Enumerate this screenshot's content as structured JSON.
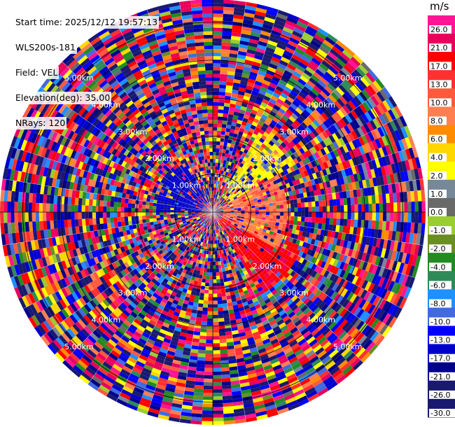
{
  "info": {
    "start_time": "Start time: 2025/12/12 19:57:13",
    "instrument": "WLS200s-181",
    "field": "Field: VEL",
    "elevation": "Elevation(deg): 35.00",
    "nrays": "NRays: 120"
  },
  "colorbar": {
    "unit": "m/s",
    "entries": [
      {
        "label": "26.0",
        "color": "#ff1493"
      },
      {
        "label": "21.0",
        "color": "#e8005c"
      },
      {
        "label": "17.0",
        "color": "#ff0000"
      },
      {
        "label": "13.0",
        "color": "#ff3030"
      },
      {
        "label": "10.0",
        "color": "#ff5a3c"
      },
      {
        "label": "8.0",
        "color": "#ff7f50"
      },
      {
        "label": "6.0",
        "color": "#ff8c00"
      },
      {
        "label": "4.0",
        "color": "#ffd700"
      },
      {
        "label": "2.0",
        "color": "#ffff00"
      },
      {
        "label": "1.0",
        "color": "#778899"
      },
      {
        "label": "0.0",
        "color": "#696969"
      },
      {
        "label": "-1.0",
        "color": "#9acd32"
      },
      {
        "label": "-2.0",
        "color": "#6b8e23"
      },
      {
        "label": "-4.0",
        "color": "#228b22"
      },
      {
        "label": "-6.0",
        "color": "#2e8b57"
      },
      {
        "label": "-8.0",
        "color": "#1e90ff"
      },
      {
        "label": "-10.0",
        "color": "#4169e1"
      },
      {
        "label": "-13.0",
        "color": "#0000ff"
      },
      {
        "label": "-17.0",
        "color": "#0000cd"
      },
      {
        "label": "-21.0",
        "color": "#00008b"
      },
      {
        "label": "-26.0",
        "color": "#191970"
      },
      {
        "label": "-30.0",
        "color": "#191970"
      }
    ]
  },
  "chart_data": {
    "type": "heatmap",
    "subtype": "polar-ppi",
    "field": "VEL",
    "elevation_deg": 35.0,
    "nrays": 120,
    "range_rings_km": [
      1,
      2,
      3,
      4,
      5
    ],
    "range_ring_labels": [
      "1.00km",
      "2.00km",
      "3.00km",
      "4.00km",
      "5.00km"
    ],
    "max_range_km": 5.6,
    "color_scale_levels": [
      -30,
      -26,
      -21,
      -17,
      -13,
      -10,
      -8,
      -6,
      -4,
      -2,
      -1,
      0,
      1,
      2,
      4,
      6,
      8,
      10,
      13,
      17,
      21,
      26
    ],
    "notes": "Noisy velocity field; coherent positive (yellow/orange/red/pink) region toward east/southeast near center, negative (blue) toward west/northwest.",
    "coherent_regions": [
      {
        "azimuth_deg_range": [
          30,
          60
        ],
        "range_km": [
          0.5,
          2.5
        ],
        "velocity_ms": 3
      },
      {
        "azimuth_deg_range": [
          60,
          120
        ],
        "range_km": [
          0.3,
          2.0
        ],
        "velocity_ms": 10
      },
      {
        "azimuth_deg_range": [
          110,
          150
        ],
        "range_km": [
          0.3,
          2.5
        ],
        "velocity_ms": 20
      },
      {
        "azimuth_deg_range": [
          270,
          330
        ],
        "range_km": [
          0.3,
          1.5
        ],
        "velocity_ms": -15
      }
    ]
  }
}
